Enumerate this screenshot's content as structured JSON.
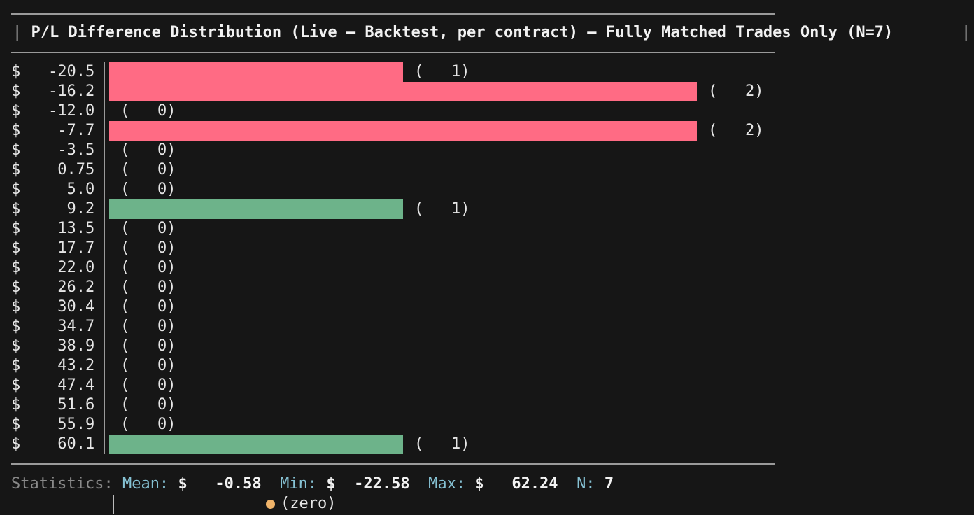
{
  "terminal": {
    "title": "P/L Difference Distribution (Live – Backtest, per contract) – Fully Matched Trades Only (N=7)",
    "title_pipe": "|",
    "right_pipe": "|"
  },
  "chart_data": {
    "type": "bar",
    "orientation": "horizontal",
    "title": "P/L Difference Distribution (Live – Backtest, per contract) – Fully Matched Trades Only (N=7)",
    "currency_symbol": "$",
    "categories": [
      "-20.5",
      "-16.2",
      "-12.0",
      "-7.7",
      "-3.5",
      "0.75",
      "5.0",
      "9.2",
      "13.5",
      "17.7",
      "22.0",
      "26.2",
      "30.4",
      "34.7",
      "38.9",
      "43.2",
      "47.4",
      "51.6",
      "55.9",
      "60.1"
    ],
    "values": [
      1,
      2,
      0,
      2,
      0,
      0,
      0,
      1,
      0,
      0,
      0,
      0,
      0,
      0,
      0,
      0,
      0,
      0,
      0,
      1
    ],
    "count_labels": [
      "(   1)",
      "(   2)",
      "(   0)",
      "(   2)",
      "(   0)",
      "(   0)",
      "(   0)",
      "(   1)",
      "(   0)",
      "(   0)",
      "(   0)",
      "(   0)",
      "(   0)",
      "(   0)",
      "(   0)",
      "(   0)",
      "(   0)",
      "(   0)",
      "(   0)",
      "(   1)"
    ],
    "xlim": [
      0,
      2
    ],
    "colors": {
      "negative": "#ff6b84",
      "positive": "#6db38a",
      "zero_marker": "#f0b46a"
    },
    "grid": false
  },
  "stats": {
    "label": "Statistics:",
    "mean_key": "Mean:",
    "mean_value": "$   -0.58",
    "min_key": "Min:",
    "min_value": "$  -22.58",
    "max_key": "Max:",
    "max_value": "$   62.24",
    "n_key": "N:",
    "n_value": "7"
  },
  "legend": {
    "zero_label": "(zero)"
  }
}
